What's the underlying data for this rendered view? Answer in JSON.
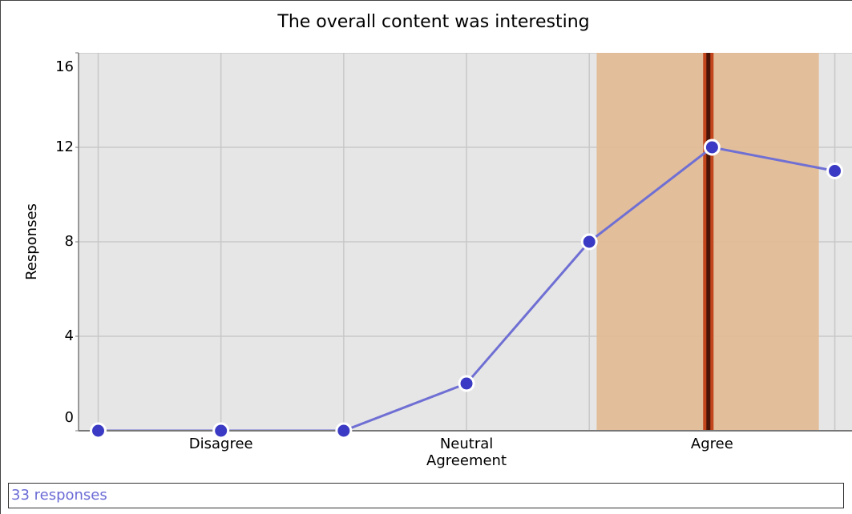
{
  "chart_data": {
    "type": "line",
    "title": "The overall content was interesting",
    "y_label": "Responses",
    "x": [
      1,
      2,
      3,
      4,
      5,
      6,
      7
    ],
    "series": [
      {
        "name": "Responses",
        "color": "#6f6fd4",
        "values": [
          0,
          0,
          0,
          2,
          8,
          12,
          11
        ]
      }
    ],
    "xlim": [
      0.84,
      7.14
    ],
    "xticks": [
      {
        "value": 2,
        "label": "Disagree"
      },
      {
        "value": 4,
        "label": "Neutral Agreement"
      },
      {
        "value": 6,
        "label": "Agree"
      }
    ],
    "ylim": [
      0,
      16
    ],
    "yticks": [
      0,
      4,
      8,
      12,
      16
    ],
    "grid": true,
    "mean": 5.97,
    "mean_color": "#c2451c",
    "sd_band": [
      5.06,
      6.87
    ],
    "band_color": "#e2bb94"
  },
  "footer": "33 responses"
}
